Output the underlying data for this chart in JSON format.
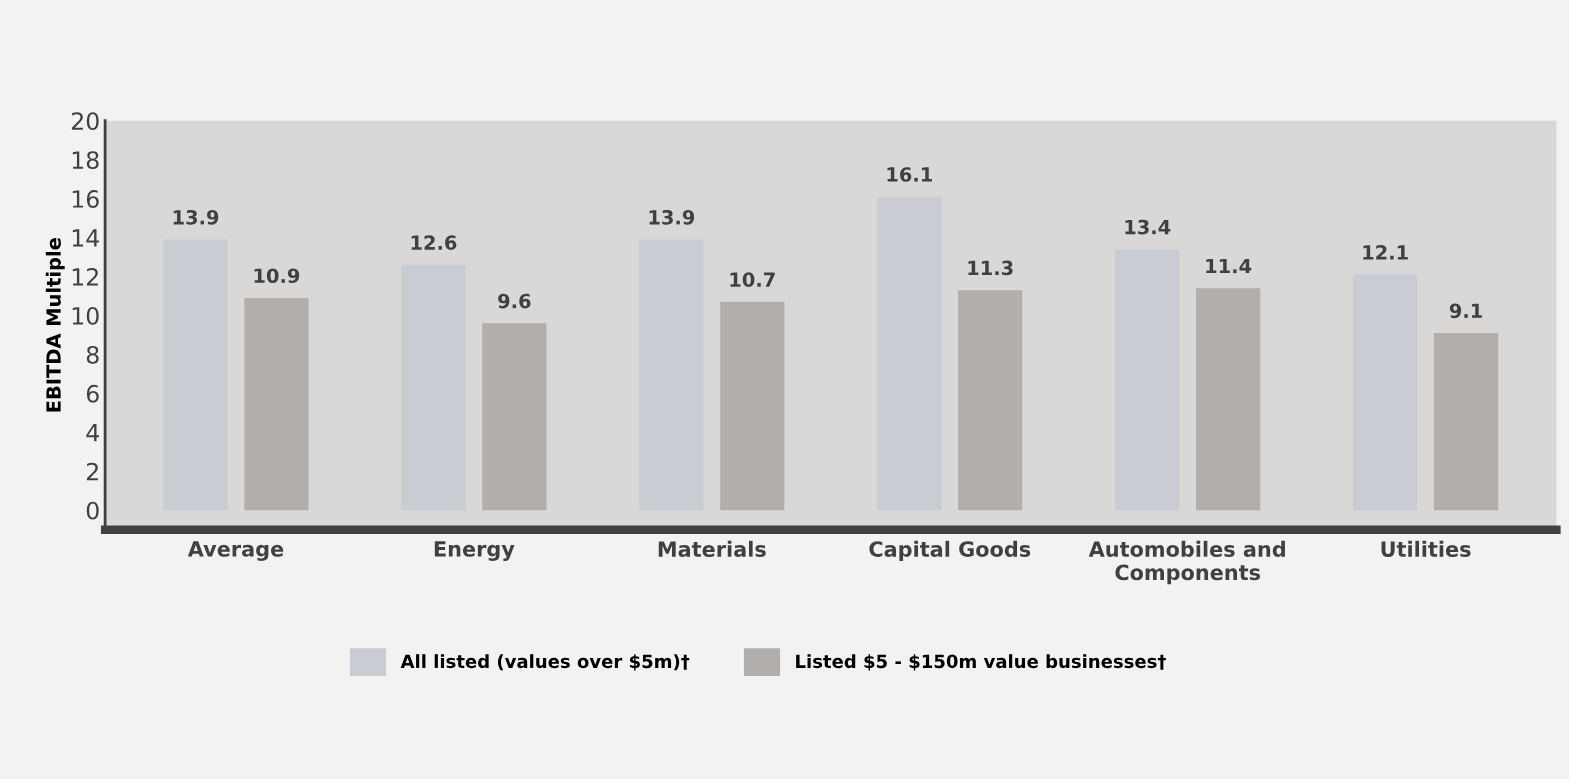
{
  "chart_data": {
    "type": "bar",
    "ylabel": "EBITDA Multiple",
    "categories": [
      "Average",
      "Energy",
      "Materials",
      "Capital Goods",
      "Automobiles and\nComponents",
      "Utilities"
    ],
    "series": [
      {
        "name": "All listed (values over $5m)†",
        "color": "#c9ccd3",
        "values": [
          13.9,
          12.6,
          13.9,
          16.1,
          13.4,
          12.1
        ]
      },
      {
        "name": "Listed $5 - $150m value businesses†",
        "color": "#b2aeac",
        "values": [
          10.9,
          9.6,
          10.7,
          11.3,
          11.4,
          9.1
        ]
      }
    ],
    "ylim": [
      -1,
      20
    ],
    "yticks": [
      0,
      2,
      4,
      6,
      8,
      10,
      12,
      14,
      16,
      18,
      20
    ],
    "data_labels": true,
    "grid": false,
    "legend": "bottom"
  }
}
